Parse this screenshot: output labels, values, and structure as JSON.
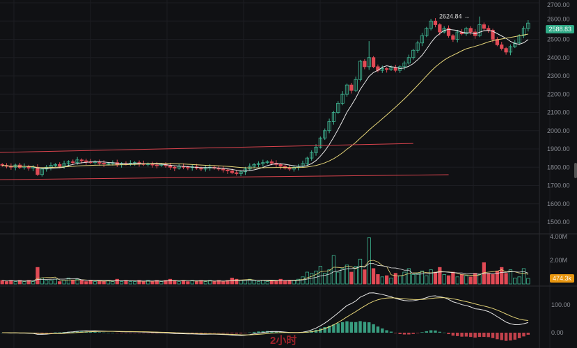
{
  "colors": {
    "up": "#3fb592",
    "down": "#e04a55",
    "ma_fast": "#e8e8e8",
    "ma_slow": "#e8d77a",
    "trendline": "#d9434d",
    "bg": "#101114",
    "last_price_bg": "#2faa86",
    "volume_badge_bg": "#e8960f",
    "watermark": "#b8262e"
  },
  "watermark": "2小时",
  "chart_data": [
    {
      "type": "candlestick",
      "pane": "price",
      "ylim": [
        1450,
        2700
      ],
      "yticks": [
        "2700.00",
        "2600.00",
        "2500.00",
        "2400.00",
        "2300.00",
        "2200.00",
        "2100.00",
        "2000.00",
        "1900.00",
        "1800.00",
        "1700.00",
        "1600.00",
        "1500.00"
      ],
      "last_price": "2588.83",
      "high_annotation": "2624.84 →",
      "close": [
        1810,
        1805,
        1800,
        1812,
        1798,
        1805,
        1795,
        1800,
        1760,
        1790,
        1800,
        1810,
        1815,
        1805,
        1820,
        1830,
        1825,
        1840,
        1835,
        1830,
        1825,
        1830,
        1822,
        1818,
        1820,
        1825,
        1815,
        1820,
        1818,
        1822,
        1825,
        1820,
        1815,
        1818,
        1812,
        1810,
        1815,
        1808,
        1800,
        1795,
        1805,
        1800,
        1798,
        1802,
        1795,
        1790,
        1798,
        1800,
        1795,
        1790,
        1785,
        1780,
        1770,
        1765,
        1775,
        1790,
        1805,
        1815,
        1820,
        1825,
        1830,
        1822,
        1815,
        1805,
        1795,
        1790,
        1800,
        1805,
        1820,
        1850,
        1880,
        1910,
        1960,
        2000,
        2050,
        2100,
        2150,
        2200,
        2250,
        2220,
        2280,
        2380,
        2350,
        2400,
        2350,
        2330,
        2340,
        2335,
        2345,
        2330,
        2350,
        2370,
        2400,
        2440,
        2480,
        2520,
        2560,
        2600,
        2580,
        2540,
        2560,
        2520,
        2500,
        2540,
        2530,
        2560,
        2540,
        2520,
        2580,
        2560,
        2550,
        2500,
        2470,
        2450,
        2430,
        2460,
        2480,
        2520,
        2560,
        2588.83
      ],
      "high_overrides": {
        "83": 2490,
        "108": 2624.84
      },
      "moving_averages": [
        {
          "period": 7
        },
        {
          "period": 25
        }
      ],
      "trendlines": [
        [
          [
            0,
            1881
          ],
          [
            93,
            1930
          ]
        ],
        [
          [
            0,
            1732
          ],
          [
            101,
            1759
          ]
        ]
      ]
    },
    {
      "type": "bar",
      "pane": "volume",
      "ylim": [
        0,
        4.2
      ],
      "yticks": [
        "4.00M",
        "2.00M"
      ],
      "last_volume": "474.3k",
      "values_millions": [
        0.3,
        0.2,
        0.3,
        0.2,
        0.3,
        0.2,
        0.3,
        0.2,
        1.4,
        0.5,
        0.3,
        0.3,
        0.4,
        0.2,
        0.3,
        0.5,
        0.3,
        0.4,
        0.3,
        0.2,
        0.3,
        0.2,
        0.3,
        0.2,
        0.3,
        0.2,
        0.4,
        0.2,
        0.3,
        0.2,
        0.2,
        0.3,
        0.2,
        0.3,
        0.2,
        0.3,
        0.2,
        0.3,
        0.4,
        0.3,
        0.2,
        0.3,
        0.2,
        0.3,
        0.2,
        0.3,
        0.2,
        0.3,
        0.2,
        0.3,
        0.2,
        0.3,
        0.5,
        0.4,
        0.3,
        0.3,
        0.4,
        0.3,
        0.2,
        0.3,
        0.2,
        0.3,
        0.3,
        0.4,
        0.3,
        0.3,
        0.3,
        0.4,
        0.6,
        1.0,
        0.9,
        1.1,
        1.5,
        0.9,
        1.2,
        2.4,
        1.0,
        1.3,
        1.6,
        1.0,
        1.5,
        2.1,
        1.2,
        3.9,
        1.3,
        0.8,
        0.6,
        0.7,
        0.5,
        0.9,
        0.7,
        1.0,
        1.3,
        0.8,
        0.9,
        1.1,
        0.7,
        1.2,
        1.0,
        1.4,
        0.8,
        0.7,
        1.0,
        0.6,
        0.8,
        0.7,
        0.6,
        0.9,
        0.8,
        1.8,
        0.9,
        0.8,
        1.1,
        1.4,
        0.9,
        1.2,
        0.5,
        0.6,
        1.3,
        0.47
      ]
    },
    {
      "type": "macd",
      "pane": "indicator",
      "ylim": [
        -55,
        165
      ],
      "yticks": [
        "100.00",
        "0.00"
      ]
    }
  ]
}
